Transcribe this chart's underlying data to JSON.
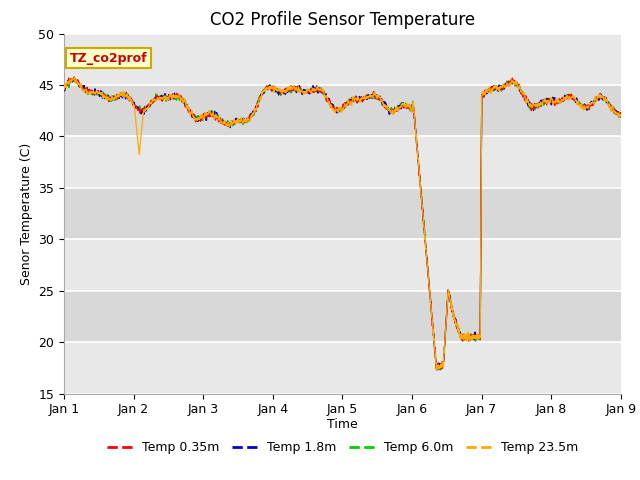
{
  "title": "CO2 Profile Sensor Temperature",
  "ylabel": "Senor Temperature (C)",
  "xlabel": "Time",
  "ylim": [
    15,
    50
  ],
  "xlim": [
    0,
    8
  ],
  "yticks": [
    15,
    20,
    25,
    30,
    35,
    40,
    45,
    50
  ],
  "xtick_labels": [
    "Jan 1",
    "Jan 2",
    "Jan 3",
    "Jan 4",
    "Jan 5",
    "Jan 6",
    "Jan 7",
    "Jan 8",
    "Jan 9"
  ],
  "annotation_text": "TZ_co2prof",
  "annotation_bg": "#ffffcc",
  "annotation_border": "#ccaa00",
  "plot_bg": "#e8e8e8",
  "line_colors": [
    "#ff0000",
    "#0000cc",
    "#00cc00",
    "#ffaa00"
  ],
  "line_labels": [
    "Temp 0.35m",
    "Temp 1.8m",
    "Temp 6.0m",
    "Temp 23.5m"
  ],
  "band_colors": [
    "#e8e8e8",
    "#d8d8d8"
  ]
}
